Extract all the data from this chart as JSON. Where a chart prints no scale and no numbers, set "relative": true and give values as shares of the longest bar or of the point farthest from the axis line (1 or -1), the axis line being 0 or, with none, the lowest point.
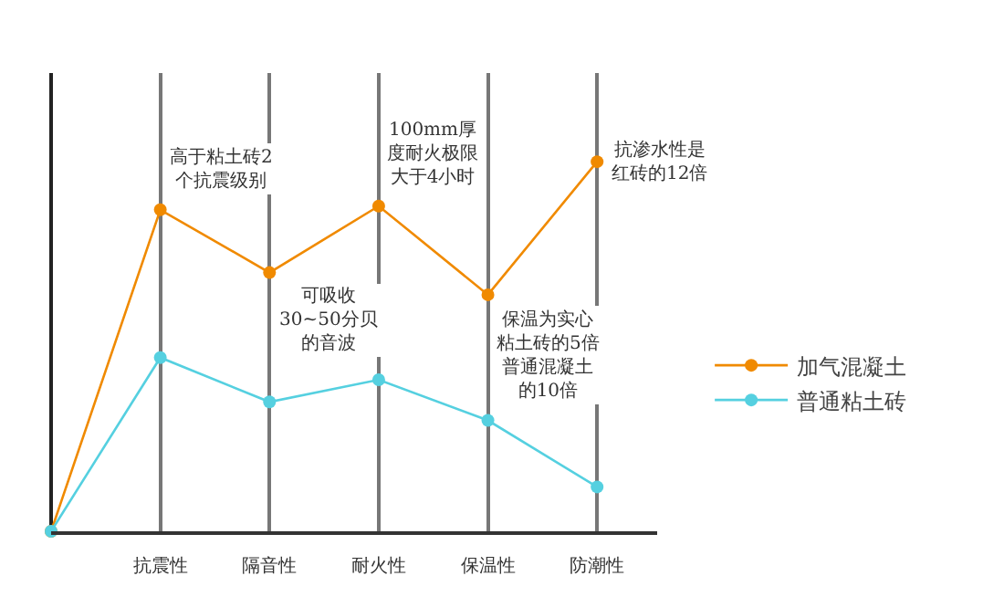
{
  "chart_data": {
    "type": "line",
    "relative": true,
    "categories": [
      null,
      "抗震性",
      "隔音性",
      "耐火性",
      "保温性",
      "防潮性"
    ],
    "series": [
      {
        "name": "加气混凝土",
        "color": "#f08a00",
        "values": [
          0,
          0.87,
          0.7,
          0.88,
          0.64,
          1
        ]
      },
      {
        "name": "普通粘土砖",
        "color": "#55d0e0",
        "values": [
          0,
          0.47,
          0.35,
          0.41,
          0.3,
          0.12
        ]
      }
    ],
    "annotations": [
      {
        "text": "高于粘土砖2个抗震级别",
        "x": "抗震性",
        "y": 0.87
      },
      {
        "text": "可吸收30~50分贝的音波",
        "x": "隔音性",
        "y": 0.7
      },
      {
        "text": "100mm厚度耐火极限大于4小时",
        "x": "耐火性",
        "y": 0.88
      },
      {
        "text": "保温为实心粘土砖的5倍普通混凝土的10倍",
        "x": "保温性",
        "y": 0.64
      },
      {
        "text": "抗渗水性是红砖的12倍",
        "x": "防潮性",
        "y": 1
      }
    ],
    "grid": "x",
    "legend": "right",
    "marker": "circle",
    "line_style": "solid"
  }
}
